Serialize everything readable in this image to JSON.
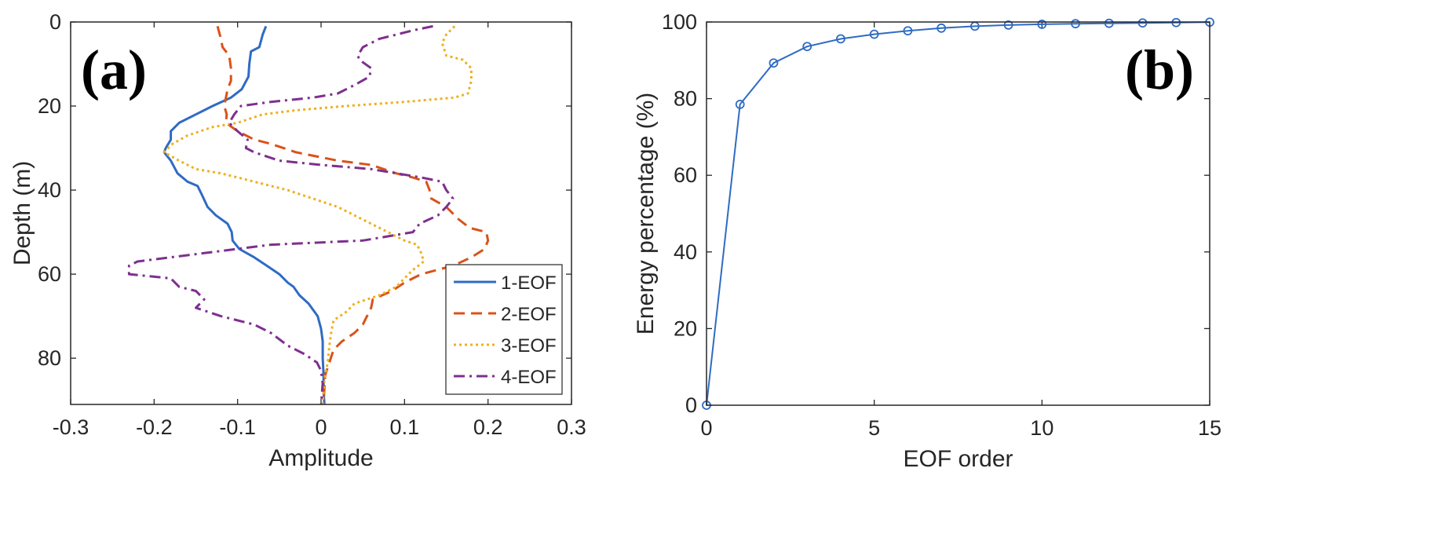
{
  "chart_data": [
    {
      "panel": "(a)",
      "type": "line",
      "orientation": "vertical-profile",
      "title": "",
      "xlabel": "Amplitude",
      "ylabel": "Depth (m)",
      "xlim": [
        -0.3,
        0.3
      ],
      "ylim": [
        0,
        91
      ],
      "y_reversed": true,
      "xticks": [
        -0.3,
        -0.2,
        -0.1,
        0,
        0.1,
        0.2,
        0.3
      ],
      "xtick_labels": [
        "-0.3",
        "-0.2",
        "-0.1",
        "0",
        "0.1",
        "0.2",
        "0.3"
      ],
      "yticks": [
        0,
        20,
        40,
        60,
        80
      ],
      "ytick_labels": [
        "0",
        "20",
        "40",
        "60",
        "80"
      ],
      "legend_position": "bottom-right",
      "series": [
        {
          "name": "1-EOF",
          "color": "#2f6bc4",
          "style": "solid",
          "points": [
            [
              -0.066,
              1
            ],
            [
              -0.07,
              3
            ],
            [
              -0.074,
              6
            ],
            [
              -0.084,
              7
            ],
            [
              -0.086,
              10
            ],
            [
              -0.087,
              13
            ],
            [
              -0.095,
              16
            ],
            [
              -0.108,
              18
            ],
            [
              -0.13,
              20
            ],
            [
              -0.15,
              22
            ],
            [
              -0.17,
              24
            ],
            [
              -0.18,
              26
            ],
            [
              -0.18,
              28
            ],
            [
              -0.186,
              30
            ],
            [
              -0.188,
              31
            ],
            [
              -0.18,
              33
            ],
            [
              -0.172,
              36
            ],
            [
              -0.16,
              38
            ],
            [
              -0.148,
              39
            ],
            [
              -0.143,
              41
            ],
            [
              -0.136,
              44
            ],
            [
              -0.126,
              46
            ],
            [
              -0.112,
              48
            ],
            [
              -0.107,
              50
            ],
            [
              -0.106,
              52
            ],
            [
              -0.098,
              54
            ],
            [
              -0.08,
              56
            ],
            [
              -0.065,
              58
            ],
            [
              -0.05,
              60
            ],
            [
              -0.04,
              62
            ],
            [
              -0.033,
              63
            ],
            [
              -0.026,
              65
            ],
            [
              -0.015,
              67
            ],
            [
              -0.004,
              70
            ],
            [
              0.0,
              73
            ],
            [
              0.002,
              76
            ],
            [
              0.002,
              80
            ],
            [
              0.003,
              84
            ],
            [
              0.003,
              88
            ],
            [
              0.004,
              91
            ]
          ]
        },
        {
          "name": "2-EOF",
          "color": "#d95319",
          "style": "dashed",
          "points": [
            [
              -0.124,
              1
            ],
            [
              -0.12,
              4
            ],
            [
              -0.118,
              6
            ],
            [
              -0.11,
              8
            ],
            [
              -0.108,
              11
            ],
            [
              -0.108,
              14
            ],
            [
              -0.112,
              16
            ],
            [
              -0.114,
              18
            ],
            [
              -0.116,
              20
            ],
            [
              -0.113,
              22
            ],
            [
              -0.114,
              24
            ],
            [
              -0.1,
              26
            ],
            [
              -0.08,
              28
            ],
            [
              -0.06,
              29
            ],
            [
              -0.03,
              31
            ],
            [
              0.02,
              33
            ],
            [
              0.06,
              34
            ],
            [
              0.09,
              36
            ],
            [
              0.11,
              37
            ],
            [
              0.126,
              38
            ],
            [
              0.13,
              40
            ],
            [
              0.132,
              42
            ],
            [
              0.15,
              44
            ],
            [
              0.165,
              47
            ],
            [
              0.178,
              49
            ],
            [
              0.198,
              50
            ],
            [
              0.2,
              52
            ],
            [
              0.196,
              54
            ],
            [
              0.18,
              56
            ],
            [
              0.158,
              58
            ],
            [
              0.12,
              60
            ],
            [
              0.1,
              62
            ],
            [
              0.085,
              64
            ],
            [
              0.062,
              66
            ],
            [
              0.06,
              68
            ],
            [
              0.055,
              70
            ],
            [
              0.05,
              72
            ],
            [
              0.04,
              74
            ],
            [
              0.025,
              76
            ],
            [
              0.015,
              78
            ],
            [
              0.01,
              81
            ],
            [
              0.005,
              84
            ],
            [
              0.004,
              87
            ],
            [
              0.003,
              91
            ]
          ]
        },
        {
          "name": "3-EOF",
          "color": "#edb120",
          "style": "dotted",
          "points": [
            [
              0.16,
              1
            ],
            [
              0.15,
              3
            ],
            [
              0.145,
              5
            ],
            [
              0.15,
              8
            ],
            [
              0.17,
              9
            ],
            [
              0.18,
              11
            ],
            [
              0.18,
              14
            ],
            [
              0.176,
              17
            ],
            [
              0.16,
              18
            ],
            [
              0.1,
              19
            ],
            [
              0.03,
              20
            ],
            [
              -0.03,
              21
            ],
            [
              -0.07,
              22
            ],
            [
              -0.1,
              24
            ],
            [
              -0.13,
              25
            ],
            [
              -0.16,
              27
            ],
            [
              -0.178,
              29
            ],
            [
              -0.188,
              31
            ],
            [
              -0.17,
              33
            ],
            [
              -0.15,
              35
            ],
            [
              -0.12,
              36
            ],
            [
              -0.1,
              37
            ],
            [
              -0.08,
              38
            ],
            [
              -0.04,
              40
            ],
            [
              -0.01,
              42
            ],
            [
              0.02,
              44
            ],
            [
              0.04,
              46
            ],
            [
              0.06,
              48
            ],
            [
              0.08,
              50
            ],
            [
              0.1,
              52
            ],
            [
              0.115,
              53
            ],
            [
              0.12,
              55
            ],
            [
              0.123,
              57
            ],
            [
              0.11,
              59
            ],
            [
              0.1,
              61
            ],
            [
              0.09,
              63
            ],
            [
              0.07,
              65
            ],
            [
              0.04,
              67
            ],
            [
              0.03,
              69
            ],
            [
              0.015,
              71
            ],
            [
              0.012,
              74
            ],
            [
              0.01,
              77
            ],
            [
              0.008,
              81
            ],
            [
              0.004,
              85
            ],
            [
              0.002,
              91
            ]
          ]
        },
        {
          "name": "4-EOF",
          "color": "#7e2f8e",
          "style": "dashdot",
          "points": [
            [
              0.134,
              1
            ],
            [
              0.11,
              2
            ],
            [
              0.09,
              3
            ],
            [
              0.07,
              4
            ],
            [
              0.05,
              6
            ],
            [
              0.044,
              8
            ],
            [
              0.046,
              9
            ],
            [
              0.06,
              11
            ],
            [
              0.058,
              13
            ],
            [
              0.04,
              15
            ],
            [
              0.02,
              17
            ],
            [
              -0.01,
              18
            ],
            [
              -0.06,
              19
            ],
            [
              -0.096,
              20
            ],
            [
              -0.104,
              22
            ],
            [
              -0.11,
              24
            ],
            [
              -0.1,
              26
            ],
            [
              -0.088,
              28
            ],
            [
              -0.09,
              30
            ],
            [
              -0.08,
              31
            ],
            [
              -0.05,
              33
            ],
            [
              0.0,
              34
            ],
            [
              0.06,
              35
            ],
            [
              0.12,
              37
            ],
            [
              0.145,
              38
            ],
            [
              0.15,
              40
            ],
            [
              0.158,
              42
            ],
            [
              0.15,
              44
            ],
            [
              0.14,
              46
            ],
            [
              0.118,
              48
            ],
            [
              0.11,
              50
            ],
            [
              0.05,
              52
            ],
            [
              -0.06,
              53
            ],
            [
              -0.14,
              55
            ],
            [
              -0.22,
              57
            ],
            [
              -0.23,
              58
            ],
            [
              -0.23,
              60
            ],
            [
              -0.18,
              61
            ],
            [
              -0.17,
              63
            ],
            [
              -0.15,
              64
            ],
            [
              -0.14,
              66
            ],
            [
              -0.15,
              68
            ],
            [
              -0.12,
              70
            ],
            [
              -0.08,
              72
            ],
            [
              -0.06,
              74
            ],
            [
              -0.04,
              77
            ],
            [
              -0.02,
              79
            ],
            [
              -0.005,
              81
            ],
            [
              0.0,
              83
            ],
            [
              0.002,
              86
            ],
            [
              0.0,
              91
            ]
          ]
        }
      ]
    },
    {
      "panel": "(b)",
      "type": "line",
      "title": "",
      "xlabel": "EOF order",
      "ylabel": "Energy percentage (%)",
      "xlim": [
        0,
        15
      ],
      "ylim": [
        0,
        100
      ],
      "xticks": [
        0,
        5,
        10,
        15
      ],
      "xtick_labels": [
        "0",
        "5",
        "10",
        "15"
      ],
      "yticks": [
        0,
        20,
        40,
        60,
        80,
        100
      ],
      "ytick_labels": [
        "0",
        "20",
        "40",
        "60",
        "80",
        "100"
      ],
      "marker": "circle",
      "series": [
        {
          "name": "Energy percentage",
          "color": "#2f6bc4",
          "x": [
            0,
            1,
            2,
            3,
            4,
            5,
            6,
            7,
            8,
            9,
            10,
            11,
            12,
            13,
            14,
            15
          ],
          "values": [
            0,
            78.5,
            89.3,
            93.6,
            95.6,
            96.8,
            97.7,
            98.4,
            98.9,
            99.2,
            99.4,
            99.55,
            99.65,
            99.75,
            99.85,
            99.95
          ]
        }
      ]
    }
  ]
}
